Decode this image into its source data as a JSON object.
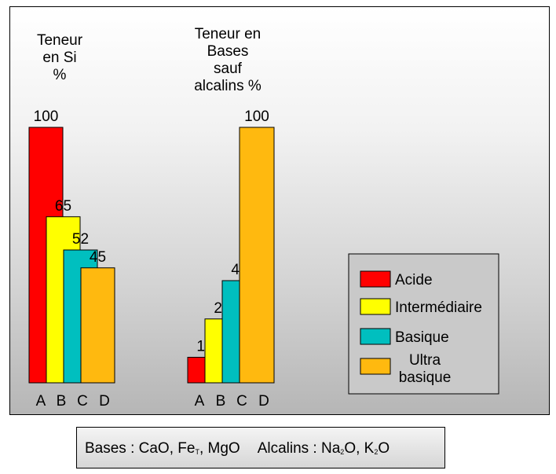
{
  "chart_data": [
    {
      "type": "bar",
      "title_lines": [
        "Teneur",
        "en Si",
        "%"
      ],
      "categories": [
        "A",
        "B",
        "C",
        "D"
      ],
      "values": [
        100,
        65,
        52,
        45
      ],
      "ylim": [
        0,
        100
      ],
      "grid": false
    },
    {
      "type": "bar",
      "title_lines": [
        "Teneur en",
        "Bases",
        "sauf",
        "alcalins %"
      ],
      "categories": [
        "A",
        "B",
        "C",
        "D"
      ],
      "values": [
        10,
        25,
        40,
        100
      ],
      "ylim": [
        0,
        100
      ],
      "grid": false
    }
  ],
  "legend": {
    "position": "bottom-right",
    "items": [
      {
        "lines": [
          "Acide"
        ],
        "color": "#ff0000"
      },
      {
        "lines": [
          "Intermédiaire"
        ],
        "color": "#ffff00"
      },
      {
        "lines": [
          "Basique"
        ],
        "color": "#00bfbf"
      },
      {
        "lines": [
          "Ultra",
          "basique"
        ],
        "color": "#ffb90f"
      }
    ]
  },
  "note": {
    "bases_label": "Bases : CaO, Fe",
    "bases_sub": "T",
    "bases_rest": ", MgO",
    "alcalins_label": "Alcalins : Na",
    "alcalins_sub1": "2",
    "alcalins_mid": "O, K",
    "alcalins_sub2": "2",
    "alcalins_end": "O"
  }
}
